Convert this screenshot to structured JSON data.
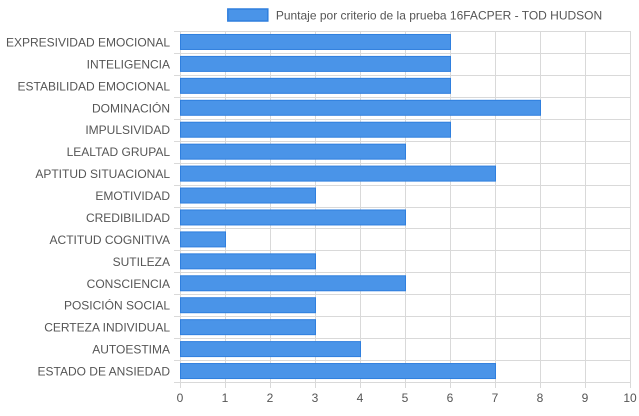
{
  "chart_data": {
    "type": "bar",
    "orientation": "horizontal",
    "categories": [
      "EXPRESIVIDAD EMOCIONAL",
      "INTELIGENCIA",
      "ESTABILIDAD EMOCIONAL",
      "DOMINACIÓN",
      "IMPULSIVIDAD",
      "LEALTAD GRUPAL",
      "APTITUD SITUACIONAL",
      "EMOTIVIDAD",
      "CREDIBILIDAD",
      "ACTITUD COGNITIVA",
      "SUTILEZA",
      "CONSCIENCIA",
      "POSICIÓN SOCIAL",
      "CERTEZA INDIVIDUAL",
      "AUTOESTIMA",
      "ESTADO DE ANSIEDAD"
    ],
    "series": [
      {
        "name": "Puntaje por criterio de la prueba 16FACPER - TOD HUDSON",
        "values": [
          6,
          6,
          6,
          8,
          6,
          5,
          7,
          3,
          5,
          1,
          3,
          5,
          3,
          3,
          4,
          7
        ],
        "color": "#4a94e8",
        "border_color": "#2f7fde"
      }
    ],
    "xlim": [
      0,
      10
    ],
    "x_ticks": [
      "0",
      "1",
      "2",
      "3",
      "4",
      "5",
      "6",
      "7",
      "8",
      "9",
      "10"
    ],
    "grid": true,
    "legend_position": "top",
    "colors": {
      "grid": "#d9d9d9",
      "label": "#555555"
    }
  }
}
